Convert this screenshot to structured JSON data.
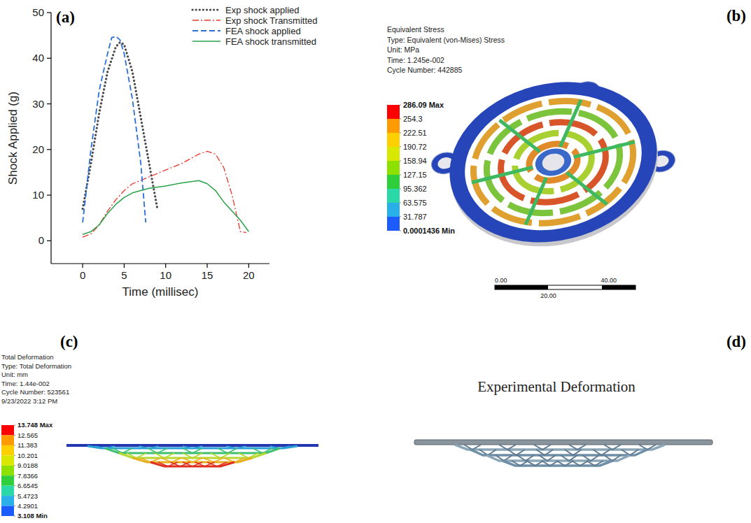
{
  "chart_data": {
    "type": "line",
    "annotations": [
      "(a)"
    ],
    "x_label": "Time (millisec)",
    "y_label": "Shock Applied (g)",
    "xlim": [
      -3.8,
      22.5
    ],
    "ylim": [
      -5,
      50
    ],
    "xticks": [
      0,
      5,
      10,
      15,
      20
    ],
    "yticks": [
      0,
      10,
      20,
      30,
      40,
      50
    ],
    "legend": "upper right",
    "series": [
      {
        "name": "Exp shock applied",
        "color": "#4a4a4a",
        "line_style": "dotted",
        "x": [
          0,
          1,
          2,
          3,
          4,
          4.5,
          5,
          6,
          7,
          8,
          9
        ],
        "values": [
          7,
          17,
          28,
          37,
          42.5,
          43.5,
          43,
          37,
          27,
          17,
          7
        ]
      },
      {
        "name": "Exp shock Transmitted",
        "color": "#e8372a",
        "line_style": "dash-dot",
        "x": [
          0,
          1,
          2,
          3,
          4,
          5,
          6,
          8,
          10,
          12,
          14,
          15,
          16,
          17,
          18,
          19,
          19.7
        ],
        "values": [
          0.8,
          1.5,
          3.5,
          6.5,
          9,
          11,
          12.5,
          14,
          15.5,
          17,
          19,
          19.6,
          19,
          16,
          10,
          2,
          1.8
        ]
      },
      {
        "name": "FEA shock applied",
        "color": "#2b6fd6",
        "line_style": "dashed",
        "x": [
          0,
          1,
          2,
          3,
          3.5,
          4,
          4.5,
          5,
          6,
          7,
          7.6
        ],
        "values": [
          4,
          20,
          33,
          41,
          44.5,
          44.8,
          44,
          41,
          31,
          17,
          4
        ]
      },
      {
        "name": "FEA shock transmitted",
        "color": "#2aa34a",
        "line_style": "solid",
        "x": [
          0,
          1,
          2,
          3,
          4,
          5,
          6,
          8,
          10,
          12,
          14,
          15,
          16,
          17,
          18,
          19,
          20
        ],
        "values": [
          1.4,
          2,
          3.5,
          6,
          8,
          9.5,
          10.5,
          11.5,
          12,
          12.7,
          13.2,
          12.5,
          11,
          8.5,
          6.5,
          4.5,
          2
        ]
      }
    ]
  },
  "panels": [
    {
      "label": "(b)",
      "header": [
        "Equivalent Stress",
        "Type: Equivalent (von-Mises) Stress",
        "Unit: MPa",
        "Time: 1.245e-002",
        "Cycle Number: 442885"
      ],
      "colorbar": {
        "range": [
          0.0001436,
          286.09
        ],
        "ticks": [
          {
            "value": 286.09,
            "label": "286.09 Max"
          },
          254.3,
          222.51,
          190.72,
          158.94,
          127.15,
          95.362,
          63.575,
          31.787,
          {
            "value": 0.0001436,
            "label": "0.0001436 Min"
          }
        ]
      },
      "scale_bar": {
        "ticks": [
          {
            "value": 0,
            "label": "0.00"
          },
          {
            "value": 20,
            "label": "20.00"
          },
          {
            "value": 40,
            "label": "40.00"
          }
        ]
      }
    },
    {
      "label": "(c)",
      "header": [
        "Total Deformation",
        "Type: Total Deformation",
        "Unit: mm",
        "Time: 1.44e-002",
        "Cycle Number: 523561",
        "9/23/2022 3:12 PM"
      ],
      "colorbar": {
        "range": [
          3.108,
          13.748
        ],
        "ticks": [
          {
            "value": 13.748,
            "label": "13.748 Max"
          },
          12.565,
          11.383,
          10.201,
          9.0188,
          7.8366,
          6.6545,
          5.4723,
          4.2901,
          {
            "value": 3.108,
            "label": "3.108 Min"
          }
        ]
      }
    },
    {
      "label": "(d)",
      "title": "Experimental Deformation"
    }
  ]
}
